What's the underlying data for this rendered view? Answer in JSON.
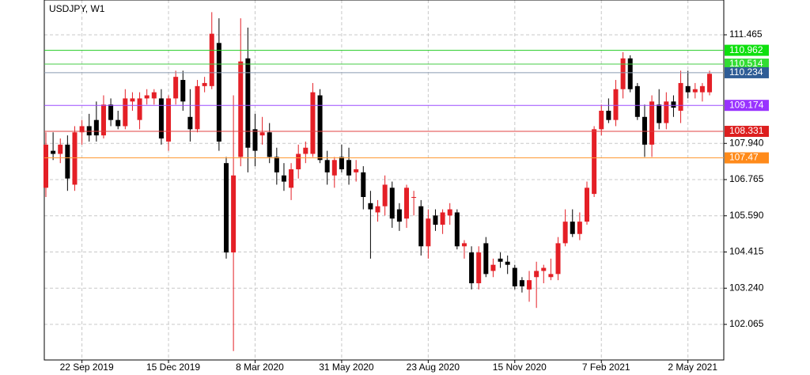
{
  "chart_data": {
    "type": "candlestick",
    "title": "USDJPY, W1",
    "categories": [
      null,
      null,
      null,
      null,
      null,
      "22 Sep 2019",
      null,
      null,
      null,
      null,
      null,
      null,
      null,
      null,
      null,
      null,
      null,
      "15 Dec 2019",
      null,
      null,
      null,
      null,
      null,
      null,
      null,
      null,
      null,
      null,
      null,
      "8 Mar 2020",
      null,
      null,
      null,
      null,
      null,
      null,
      null,
      null,
      null,
      null,
      null,
      "31 May 2020",
      null,
      null,
      null,
      null,
      null,
      null,
      null,
      null,
      null,
      null,
      null,
      "23 Aug 2020",
      null,
      null,
      null,
      null,
      null,
      null,
      null,
      null,
      null,
      null,
      null,
      "15 Nov 2020",
      null,
      null,
      null,
      null,
      null,
      null,
      null,
      null,
      null,
      null,
      null,
      "7 Feb 2021",
      null,
      null,
      null,
      null,
      null,
      null,
      null,
      null,
      null,
      null,
      null,
      "2 May 2021",
      null,
      null,
      null
    ],
    "open": [
      106.5,
      107.7,
      107.6,
      107.9,
      106.6,
      108.3,
      108.5,
      108.7,
      108.2,
      109.2,
      108.7,
      108.5,
      109.3,
      108.7,
      109.4,
      109.4,
      109.4,
      108.0,
      109.4,
      110.0,
      108.8,
      108.4,
      109.8,
      109.8,
      111.2,
      107.3,
      104.4,
      107.5,
      110.7,
      108.4,
      108.2,
      108.3,
      107.5,
      106.9,
      106.5,
      107.1,
      107.6,
      107.6,
      109.5,
      107.4,
      106.9,
      107.5,
      107.4,
      107.0,
      107.0,
      106.0,
      105.7,
      105.9,
      106.5,
      105.8,
      105.5,
      106.2,
      105.9,
      104.6,
      105.6,
      105.3,
      105.6,
      105.7,
      104.6,
      104.4,
      103.4,
      104.7,
      103.8,
      104.2,
      104.1,
      103.9,
      103.5,
      103.2,
      103.6,
      103.8,
      103.6,
      103.7,
      104.7,
      105.4,
      105.0,
      105.4,
      106.3,
      108.4,
      109.0,
      108.7,
      109.7,
      110.7,
      109.8,
      108.8,
      107.9,
      109.2,
      108.6,
      109.3,
      109.0,
      109.8,
      109.6,
      109.6,
      109.6
    ],
    "high": [
      108.3,
      108.3,
      108.1,
      108.2,
      108.5,
      108.7,
      108.9,
      109.3,
      109.5,
      109.4,
      109.0,
      109.7,
      109.6,
      109.6,
      109.7,
      109.7,
      109.7,
      109.5,
      110.3,
      110.3,
      109.7,
      110.0,
      110.1,
      112.2,
      112.0,
      107.5,
      109.5,
      112.0,
      111.7,
      108.9,
      108.8,
      108.6,
      107.8,
      107.3,
      107.3,
      107.9,
      108.0,
      109.9,
      109.7,
      107.7,
      107.5,
      107.9,
      107.8,
      107.4,
      107.2,
      106.4,
      106.1,
      106.9,
      106.7,
      106.0,
      106.6,
      106.4,
      106.1,
      105.8,
      105.8,
      105.8,
      106.0,
      105.8,
      104.8,
      104.6,
      104.6,
      104.9,
      104.2,
      104.4,
      104.3,
      104.0,
      103.6,
      103.8,
      104.1,
      104.0,
      104.2,
      104.9,
      105.8,
      105.8,
      105.7,
      106.7,
      108.5,
      109.2,
      109.4,
      110.0,
      110.9,
      110.8,
      109.9,
      109.2,
      109.5,
      109.7,
      109.6,
      109.5,
      110.3,
      110.3,
      109.9,
      109.9,
      110.3
    ],
    "low": [
      106.2,
      107.4,
      107.3,
      106.4,
      106.4,
      107.9,
      108.0,
      108.0,
      108.1,
      108.5,
      108.4,
      108.4,
      109.0,
      108.4,
      109.2,
      109.2,
      107.9,
      107.7,
      109.2,
      109.0,
      108.0,
      108.3,
      109.6,
      109.7,
      107.7,
      104.2,
      101.2,
      107.2,
      107.0,
      107.2,
      107.9,
      107.3,
      106.6,
      106.4,
      106.1,
      106.8,
      107.3,
      107.5,
      107.3,
      106.6,
      106.5,
      107.0,
      106.6,
      106.7,
      105.8,
      104.2,
      105.4,
      105.6,
      105.2,
      105.1,
      105.2,
      105.6,
      104.3,
      104.2,
      105.1,
      105.0,
      105.3,
      104.5,
      104.2,
      103.2,
      103.2,
      103.6,
      103.6,
      103.9,
      103.7,
      103.2,
      103.1,
      102.8,
      102.6,
      103.4,
      103.5,
      103.5,
      104.6,
      104.9,
      104.8,
      105.3,
      106.2,
      108.2,
      108.6,
      108.5,
      109.4,
      109.6,
      108.7,
      107.5,
      107.5,
      108.4,
      108.4,
      108.8,
      108.6,
      109.4,
      109.4,
      109.3,
      109.5
    ],
    "close": [
      107.9,
      107.6,
      107.9,
      106.8,
      108.3,
      108.5,
      108.2,
      108.2,
      109.2,
      108.7,
      108.5,
      109.4,
      109.4,
      109.4,
      109.5,
      109.6,
      108.1,
      109.4,
      110.1,
      109.3,
      108.4,
      109.8,
      109.9,
      111.5,
      108.0,
      104.4,
      106.9,
      110.6,
      107.8,
      107.7,
      108.3,
      107.5,
      107.0,
      106.7,
      107.1,
      107.6,
      107.8,
      109.6,
      107.4,
      107.0,
      107.4,
      107.1,
      106.9,
      107.1,
      106.2,
      105.8,
      105.9,
      106.6,
      105.5,
      105.4,
      106.5,
      106.2,
      104.6,
      105.5,
      105.3,
      105.7,
      105.8,
      104.6,
      104.7,
      103.4,
      104.4,
      103.7,
      104.0,
      104.1,
      104.0,
      103.3,
      103.3,
      103.5,
      103.8,
      103.9,
      103.7,
      104.7,
      105.4,
      105.0,
      105.4,
      106.5,
      108.4,
      109.0,
      108.7,
      109.7,
      110.7,
      109.7,
      108.8,
      107.9,
      109.3,
      108.6,
      109.3,
      109.1,
      109.9,
      109.6,
      109.7,
      109.8,
      110.2
    ],
    "up_color": "#e41f26",
    "down_color": "#000000",
    "ylim": [
      100.91,
      112.595
    ],
    "yticks": [
      111.465,
      {
        "value": 107.94,
        "label": "107.940"
      },
      106.765,
      {
        "value": 105.59,
        "label": "105.590"
      },
      104.415,
      {
        "value": 103.24,
        "label": "103.240"
      },
      102.065
    ],
    "grid": true,
    "levels": [
      {
        "value": 110.962,
        "color": "#22cc22",
        "box": "#0ee00e"
      },
      {
        "value": 110.514,
        "color": "#44cc44",
        "box": "#33dd33"
      },
      {
        "value": 110.234,
        "color": "#8a9ab0",
        "box": "#2f5d96"
      },
      {
        "value": 109.174,
        "color": "#9b4dff",
        "box": "#9933ff"
      },
      {
        "value": 108.331,
        "color": "#e04040",
        "box": "#dd1f1f"
      },
      {
        "value": 107.47,
        "color": "#ff9933",
        "box": "#ff8a1a"
      }
    ]
  }
}
